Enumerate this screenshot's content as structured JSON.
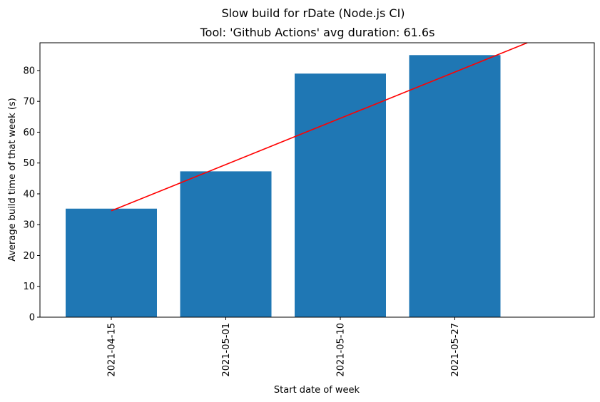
{
  "chart_data": {
    "type": "bar",
    "suptitle": "Slow build for rDate (Node.js CI)",
    "title": "Tool: 'Github Actions' avg duration: 61.6s",
    "xlabel": "Start date of week",
    "ylabel": "Average build time of that week (s)",
    "categories": [
      "2021-04-15",
      "2021-05-01",
      "2021-05-10",
      "2021-05-27"
    ],
    "values": [
      35.2,
      47.3,
      79.0,
      85.0
    ],
    "bar_color": "#1f77b4",
    "trend_line": {
      "color": "#ff0000",
      "start": 34.5,
      "slope_per_category": 15.0
    },
    "ylim": [
      0,
      89
    ],
    "yticks": [
      0,
      10,
      20,
      30,
      40,
      50,
      60,
      70,
      80
    ],
    "grid": false,
    "legend": false
  }
}
